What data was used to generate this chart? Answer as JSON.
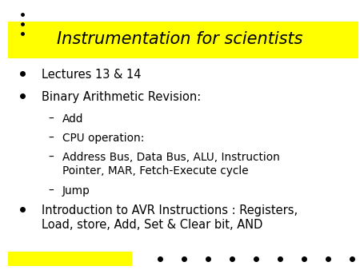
{
  "title": "Instrumentation for scientists",
  "title_bg": "#FFFF00",
  "title_fontsize": 15,
  "title_color": "#000000",
  "bg_color": "#FFFFFF",
  "bullet_points": [
    {
      "text": "Lectures 13 & 14",
      "level": 0
    },
    {
      "text": "Binary Arithmetic Revision:",
      "level": 0
    },
    {
      "text": "Add",
      "level": 1
    },
    {
      "text": "CPU operation:",
      "level": 1
    },
    {
      "text": "Address Bus, Data Bus, ALU, Instruction\nPointer, MAR, Fetch-Execute cycle",
      "level": 1
    },
    {
      "text": "Jump",
      "level": 1
    },
    {
      "text": "Introduction to AVR Instructions : Registers,\nLoad, store, Add, Set & Clear bit, AND",
      "level": 0
    }
  ],
  "bottom_bar_color": "#FFFF00",
  "body_fontsize": 10.5,
  "sub_fontsize": 9.8,
  "title_italic": true
}
